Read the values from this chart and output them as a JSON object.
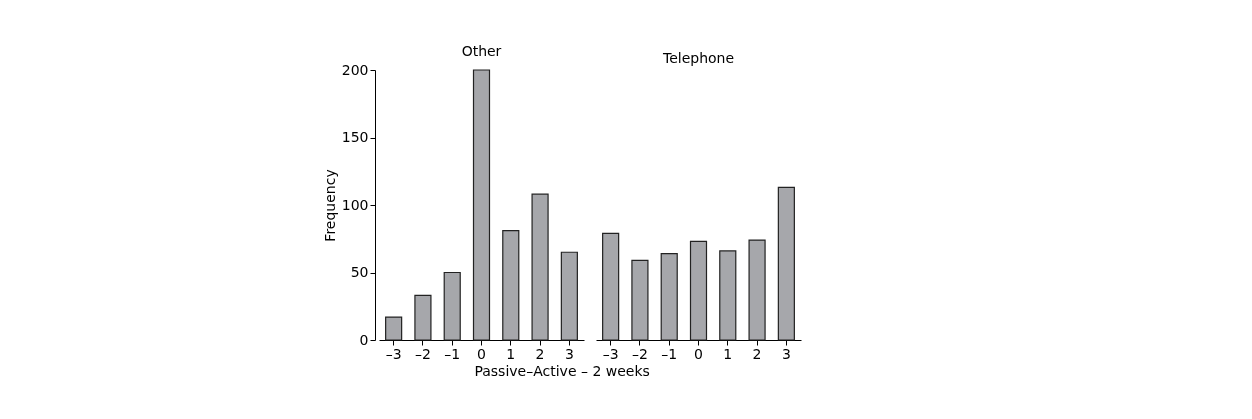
{
  "chart_data": [
    {
      "type": "bar",
      "title": "Other",
      "xlabel": "Passive–Active – 2 weeks",
      "ylabel": "Frequency",
      "categories": [
        "–3",
        "–2",
        "–1",
        "0",
        "1",
        "2",
        "3"
      ],
      "values": [
        17,
        33,
        50,
        200,
        81,
        108,
        65
      ],
      "color": "#a6a7ab",
      "ylim": [
        0,
        200
      ],
      "yticks": [
        0,
        50,
        100,
        150,
        200
      ],
      "grid": false
    },
    {
      "type": "bar",
      "title": "Telephone",
      "categories": [
        "–3",
        "–2",
        "–1",
        "0",
        "1",
        "2",
        "3"
      ],
      "values": [
        79,
        59,
        64,
        73,
        66,
        74,
        113
      ],
      "color": "#a6a7ab",
      "ylim": [
        0,
        200
      ],
      "yticks": [
        0,
        50,
        100,
        150,
        200
      ],
      "grid": false,
      "tick_labels": "x"
    }
  ]
}
